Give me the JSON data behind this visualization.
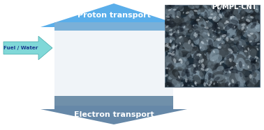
{
  "bg_color": "#ffffff",
  "proton_arrow_color": "#5aaeea",
  "electron_arrow_color": "#6688a8",
  "fuel_water_arrow_color": "#80d8d8",
  "fuel_water_text": "Fuel / Water",
  "fuel_water_text_color": "#1a3a8f",
  "proton_text": "Proton transport",
  "proton_text_color": "#ffffff",
  "electron_text": "Electron transport",
  "electron_text_color": "#ffffff",
  "cnt_label": "Pt/MPL-CNT",
  "cnt_label_color": "#ffffff",
  "cnt_outer_color": "#555566",
  "cnt_inner_color": "#c8ccd8",
  "cnt_highlight": "#e8ecf8",
  "plate_color": "#8aabcc",
  "sem_bg": "#1e2e3a"
}
